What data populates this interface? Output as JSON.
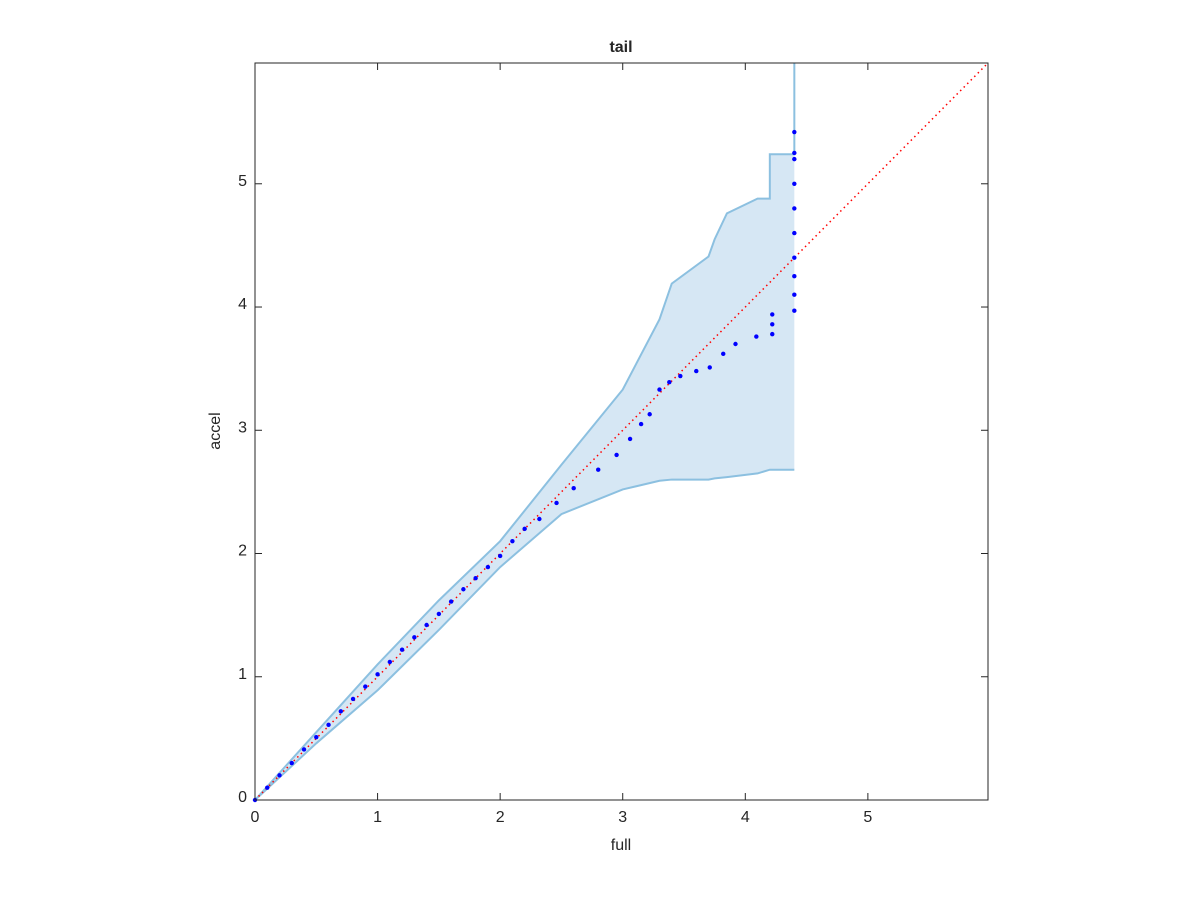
{
  "chart_data": {
    "type": "scatter",
    "title": "tail",
    "xlabel": "full",
    "ylabel": "accel",
    "xlim": [
      0,
      5.98
    ],
    "ylim": [
      0,
      5.98
    ],
    "xticks": [
      0,
      1,
      2,
      3,
      4,
      5
    ],
    "yticks": [
      0,
      1,
      2,
      3,
      4,
      5
    ],
    "points": {
      "color": "#0000ff",
      "x": [
        0,
        0.1,
        0.2,
        0.3,
        0.4,
        0.5,
        0.6,
        0.7,
        0.8,
        0.9,
        1.0,
        1.1,
        1.2,
        1.3,
        1.4,
        1.5,
        1.6,
        1.7,
        1.8,
        1.9,
        2.0,
        2.1,
        2.2,
        2.32,
        2.46,
        2.6,
        2.8,
        2.95,
        3.06,
        3.15,
        3.22,
        3.3,
        3.38,
        3.47,
        3.6,
        3.71,
        3.82,
        3.92,
        4.09,
        4.22,
        4.22,
        4.22,
        4.4,
        4.4,
        4.4,
        4.4,
        4.4,
        4.4,
        4.4,
        4.4,
        4.4,
        4.4
      ],
      "y": [
        0,
        0.1,
        0.2,
        0.3,
        0.41,
        0.51,
        0.61,
        0.72,
        0.82,
        0.92,
        1.02,
        1.12,
        1.22,
        1.32,
        1.42,
        1.51,
        1.61,
        1.71,
        1.8,
        1.89,
        1.98,
        2.1,
        2.2,
        2.28,
        2.41,
        2.53,
        2.68,
        2.8,
        2.93,
        3.05,
        3.13,
        3.33,
        3.39,
        3.44,
        3.48,
        3.51,
        3.62,
        3.7,
        3.76,
        3.78,
        3.86,
        3.94,
        3.97,
        4.1,
        4.25,
        4.4,
        4.6,
        4.8,
        5.0,
        5.2,
        5.25,
        5.42
      ]
    },
    "band": {
      "color": "#d6e7f4",
      "edge_color": "#8cc0e0",
      "x": [
        0,
        0.5,
        1,
        1.5,
        2,
        2.5,
        3,
        3.3,
        3.4,
        3.7,
        3.75,
        3.85,
        4.1,
        4.2,
        4.2,
        4.4,
        4.4
      ],
      "lower": [
        0,
        0.46,
        0.89,
        1.38,
        1.89,
        2.32,
        2.52,
        2.59,
        2.6,
        2.6,
        2.61,
        2.62,
        2.65,
        2.68,
        2.68,
        2.68,
        2.68
      ],
      "upper": [
        0,
        0.55,
        1.1,
        1.62,
        2.1,
        2.72,
        3.33,
        3.9,
        4.19,
        4.41,
        4.55,
        4.76,
        4.88,
        4.88,
        5.24,
        5.24,
        5.98
      ]
    },
    "reference_line": {
      "color": "#ff0000",
      "x": [
        0,
        5.98
      ],
      "y": [
        0,
        5.98
      ]
    }
  }
}
